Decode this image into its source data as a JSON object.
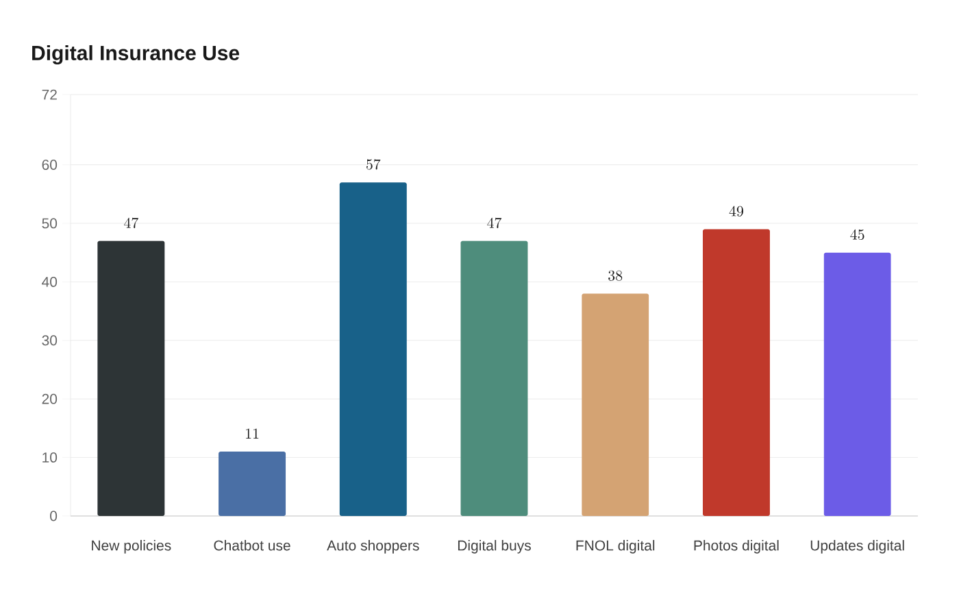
{
  "chart_data": {
    "type": "bar",
    "title": "Digital Insurance Use",
    "categories": [
      "New policies",
      "Chatbot use",
      "Auto shoppers",
      "Digital buys",
      "FNOL digital",
      "Photos digital",
      "Updates digital"
    ],
    "values": [
      47,
      11,
      57,
      47,
      38,
      49,
      45
    ],
    "colors": [
      "#2d3436",
      "#4a6fa5",
      "#186189",
      "#4e8d7c",
      "#d4a373",
      "#c0392b",
      "#6c5ce7"
    ],
    "ylim": [
      0,
      72
    ],
    "yticks": [
      0,
      10,
      20,
      30,
      40,
      50,
      60,
      72
    ],
    "grid": "y",
    "data_labels": true
  }
}
